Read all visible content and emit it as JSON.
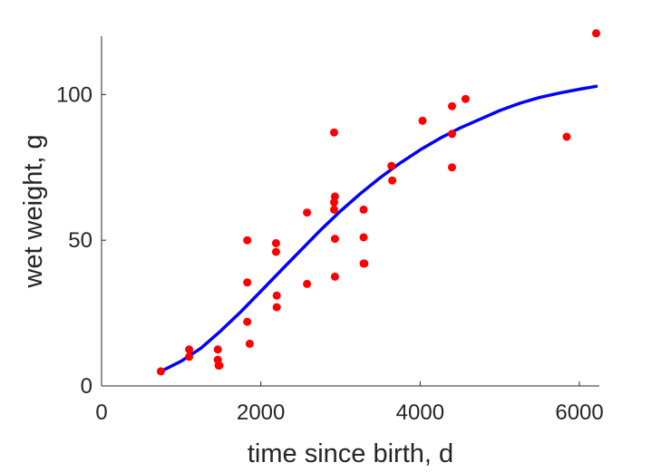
{
  "chart_data": {
    "type": "scatter",
    "title": "",
    "xlabel": "time since birth, d",
    "ylabel": "wet weight, g",
    "xlim": [
      0,
      6250
    ],
    "ylim": [
      0,
      120
    ],
    "xticks": [
      "0",
      "2000",
      "4000",
      "6000"
    ],
    "yticks": [
      "0",
      "50",
      "100"
    ],
    "grid": false,
    "colors": {
      "points": "#ff0000",
      "curve": "#0000ff",
      "axes": "#262626"
    },
    "series": [
      {
        "type": "scatter",
        "x": [
          745,
          1100,
          1100,
          1460,
          1460,
          1470,
          1480,
          1830,
          1830,
          1830,
          1860,
          2190,
          2190,
          2200,
          2200,
          2580,
          2580,
          2920,
          2920,
          2920,
          2930,
          2930,
          2930,
          3290,
          3290,
          3290,
          3300,
          3640,
          3650,
          4030,
          4400,
          4400,
          4400,
          4570,
          5840,
          6210
        ],
        "y": [
          5,
          10,
          12.5,
          12.5,
          9,
          7,
          7,
          50,
          35.5,
          22,
          14.5,
          49,
          46,
          31,
          27,
          59.5,
          35,
          87,
          63,
          60.5,
          50.5,
          37.5,
          65,
          60.5,
          51,
          42,
          42,
          75.5,
          70.5,
          91,
          96,
          86.5,
          75,
          98.5,
          85.5,
          121
        ]
      },
      {
        "type": "line",
        "x": [
          745,
          1000,
          1250,
          1500,
          1750,
          2000,
          2250,
          2500,
          2750,
          3000,
          3250,
          3500,
          3750,
          4000,
          4250,
          4500,
          4750,
          5000,
          5250,
          5500,
          5750,
          6000,
          6210
        ],
        "y": [
          5,
          8.5,
          13,
          19,
          25.5,
          32.5,
          39.5,
          46.5,
          53.5,
          60,
          66,
          71.5,
          76.5,
          81,
          85,
          88.5,
          91.5,
          94.5,
          97,
          99,
          100.5,
          101.8,
          102.8
        ]
      }
    ]
  }
}
